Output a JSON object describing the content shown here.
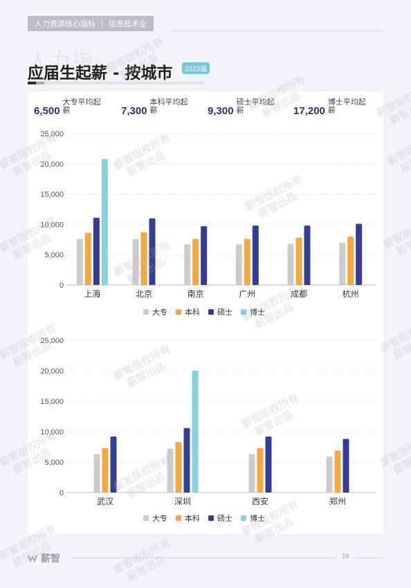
{
  "header": {
    "section": "人力资源核心指标",
    "divider": "|",
    "category": "信息技术业"
  },
  "background_word": "人力指",
  "page_title": "应届生起薪 - 按城市",
  "year_badge": "2023届",
  "stats": [
    {
      "value": "6,500",
      "label": "大专平均起薪"
    },
    {
      "value": "7,300",
      "label": "本科平均起薪"
    },
    {
      "value": "9,300",
      "label": "硕士平均起薪"
    },
    {
      "value": "17,200",
      "label": "博士平均起薪"
    }
  ],
  "colors": {
    "大专": "#cccccc",
    "本科": "#f5a93c",
    "硕士": "#343d96",
    "博士": "#84d3e0"
  },
  "chart_data": [
    {
      "type": "bar",
      "categories": [
        "上海",
        "北京",
        "南京",
        "广州",
        "成都",
        "杭州"
      ],
      "series": [
        {
          "name": "大专",
          "values": [
            7600,
            7600,
            6700,
            6700,
            6800,
            7000
          ]
        },
        {
          "name": "本科",
          "values": [
            8600,
            8700,
            7600,
            7600,
            7800,
            8000
          ]
        },
        {
          "name": "硕士",
          "values": [
            11100,
            11000,
            9700,
            9800,
            9800,
            10100
          ]
        },
        {
          "name": "博士",
          "values": [
            20800,
            null,
            null,
            null,
            null,
            null
          ]
        }
      ],
      "yticks": [
        "0",
        "5,000",
        "10,000",
        "15,000",
        "20,000",
        "25,000"
      ],
      "ylim": [
        0,
        25000
      ],
      "legend": "bottom-center",
      "grid": "dashed-horizontal"
    },
    {
      "type": "bar",
      "categories": [
        "武汉",
        "深圳",
        "西安",
        "郑州"
      ],
      "series": [
        {
          "name": "大专",
          "values": [
            6300,
            7200,
            6300,
            5900
          ]
        },
        {
          "name": "本科",
          "values": [
            7300,
            8300,
            7300,
            6900
          ]
        },
        {
          "name": "硕士",
          "values": [
            9200,
            10600,
            9200,
            8800
          ]
        },
        {
          "name": "博士",
          "values": [
            null,
            20000,
            null,
            null
          ]
        }
      ],
      "yticks": [
        "0",
        "5,000",
        "10,000",
        "15,000",
        "20,000",
        "25,000"
      ],
      "ylim": [
        0,
        25000
      ],
      "legend": "bottom-center",
      "grid": "dashed-horizontal"
    }
  ],
  "watermark": {
    "line1": "薪智版权所有",
    "line2": "薪智出品"
  },
  "footer": {
    "logo_text": "薪智",
    "page_number": "16"
  }
}
